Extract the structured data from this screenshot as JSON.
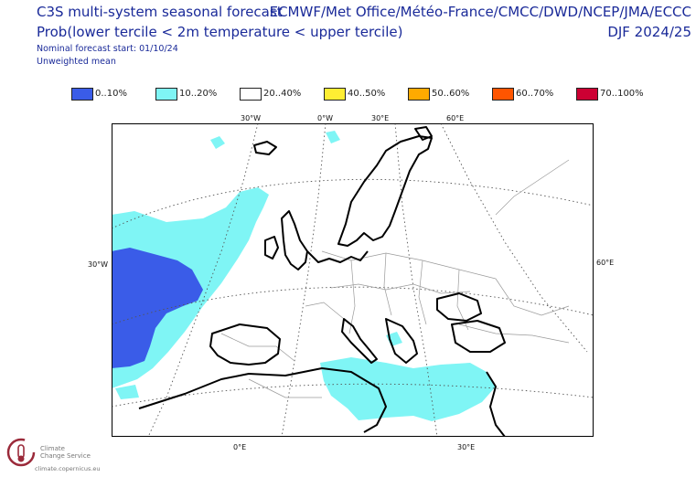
{
  "header": {
    "title_line1": "C3S multi-system seasonal forecast",
    "title_line2": "Prob(lower tercile < 2m temperature < upper tercile)",
    "nominal_start": "Nominal forecast start: 01/10/24",
    "weighting": "Unweighted mean",
    "systems": "ECMWF/Met Office/Météo-France/CMCC/DWD/NCEP/JMA/ECCC",
    "season": "DJF 2024/25"
  },
  "legend": [
    {
      "label": "0..10%",
      "color": "#3a5ce8"
    },
    {
      "label": "10..20%",
      "color": "#7ff5f5"
    },
    {
      "label": "20..40%",
      "color": "#ffffff"
    },
    {
      "label": "40..50%",
      "color": "#ffee33"
    },
    {
      "label": "50..60%",
      "color": "#ffaa00"
    },
    {
      "label": "60..70%",
      "color": "#ff5500"
    },
    {
      "label": "70..100%",
      "color": "#cc0033"
    }
  ],
  "axes": {
    "top": [
      "30°W",
      "0°W",
      "30°E",
      "60°E"
    ],
    "left": "30°W",
    "right": "60°E",
    "bottom": [
      "0°E",
      "30°E"
    ]
  },
  "logo": {
    "name_line1": "Climate",
    "name_line2": "Change Service",
    "url": "climate.copernicus.eu"
  }
}
